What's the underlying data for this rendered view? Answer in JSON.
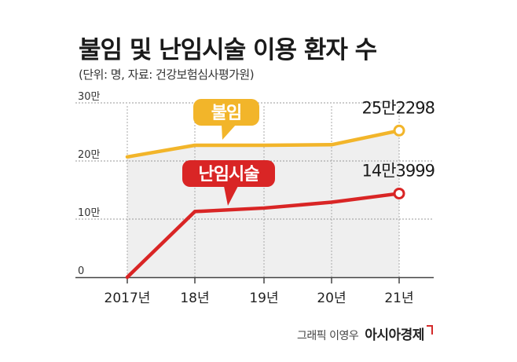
{
  "header": {
    "title": "불임 및 난임시술 이용 환자 수",
    "subtitle": "(단위: 명, 자료: 건강보험심사평가원)"
  },
  "footer": {
    "credit": "그래픽 이영우",
    "brand": "아시아경제"
  },
  "chart_data": {
    "type": "line",
    "categories": [
      "2017년",
      "18년",
      "19년",
      "20년",
      "21년"
    ],
    "y_ticks": [
      "0",
      "10만",
      "20만",
      "30만"
    ],
    "ylim": [
      0,
      300000
    ],
    "grid": true,
    "series": [
      {
        "name": "불임",
        "values": [
          207000,
          227000,
          227000,
          228000,
          252298
        ],
        "color": "#f2b52a",
        "end_label": "25만2298"
      },
      {
        "name": "난임시술",
        "values": [
          0,
          113000,
          119000,
          129000,
          143999
        ],
        "color": "#d92525",
        "end_label": "14만3999"
      }
    ]
  }
}
